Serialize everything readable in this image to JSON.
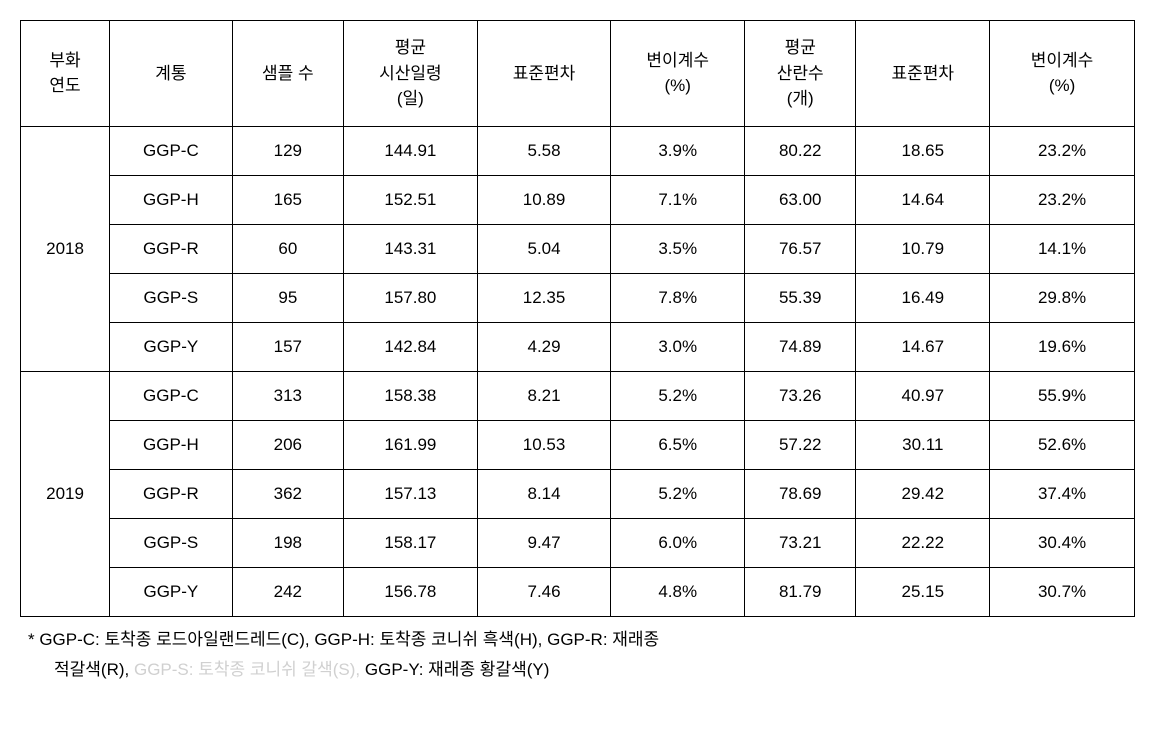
{
  "table": {
    "headers": {
      "year": "부화\n연도",
      "line": "계통",
      "sample": "샘플 수",
      "avgday": "평균\n시산일령\n(일)",
      "std1": "표준편차",
      "cv1": "변이계수\n(%)",
      "eggs": "평균\n산란수\n(개)",
      "std2": "표준편차",
      "cv2": "변이계수\n(%)"
    },
    "years": [
      {
        "year": "2018",
        "rows": [
          {
            "line": "GGP-C",
            "sample": "129",
            "avgday": "144.91",
            "std1": "5.58",
            "cv1": "3.9%",
            "eggs": "80.22",
            "std2": "18.65",
            "cv2": "23.2%"
          },
          {
            "line": "GGP-H",
            "sample": "165",
            "avgday": "152.51",
            "std1": "10.89",
            "cv1": "7.1%",
            "eggs": "63.00",
            "std2": "14.64",
            "cv2": "23.2%"
          },
          {
            "line": "GGP-R",
            "sample": "60",
            "avgday": "143.31",
            "std1": "5.04",
            "cv1": "3.5%",
            "eggs": "76.57",
            "std2": "10.79",
            "cv2": "14.1%"
          },
          {
            "line": "GGP-S",
            "sample": "95",
            "avgday": "157.80",
            "std1": "12.35",
            "cv1": "7.8%",
            "eggs": "55.39",
            "std2": "16.49",
            "cv2": "29.8%"
          },
          {
            "line": "GGP-Y",
            "sample": "157",
            "avgday": "142.84",
            "std1": "4.29",
            "cv1": "3.0%",
            "eggs": "74.89",
            "std2": "14.67",
            "cv2": "19.6%"
          }
        ]
      },
      {
        "year": "2019",
        "rows": [
          {
            "line": "GGP-C",
            "sample": "313",
            "avgday": "158.38",
            "std1": "8.21",
            "cv1": "5.2%",
            "eggs": "73.26",
            "std2": "40.97",
            "cv2": "55.9%"
          },
          {
            "line": "GGP-H",
            "sample": "206",
            "avgday": "161.99",
            "std1": "10.53",
            "cv1": "6.5%",
            "eggs": "57.22",
            "std2": "30.11",
            "cv2": "52.6%"
          },
          {
            "line": "GGP-R",
            "sample": "362",
            "avgday": "157.13",
            "std1": "8.14",
            "cv1": "5.2%",
            "eggs": "78.69",
            "std2": "29.42",
            "cv2": "37.4%"
          },
          {
            "line": "GGP-S",
            "sample": "198",
            "avgday": "158.17",
            "std1": "9.47",
            "cv1": "6.0%",
            "eggs": "73.21",
            "std2": "22.22",
            "cv2": "30.4%"
          },
          {
            "line": "GGP-Y",
            "sample": "242",
            "avgday": "156.78",
            "std1": "7.46",
            "cv1": "4.8%",
            "eggs": "81.79",
            "std2": "25.15",
            "cv2": "30.7%"
          }
        ]
      }
    ]
  },
  "footnote": {
    "line1_prefix": "* GGP-C: 토착종 로드아일랜드레드(C), GGP-H: 토착종 코니쉬 흑색(H),  GGP-R: 재래종",
    "line2_part1": "적갈색(R), ",
    "line2_gray1": "GGP-S: 토착종 코니쉬 갈색(S), ",
    "line2_part2": "GGP-Y: 재래종 황갈색(Y)"
  }
}
